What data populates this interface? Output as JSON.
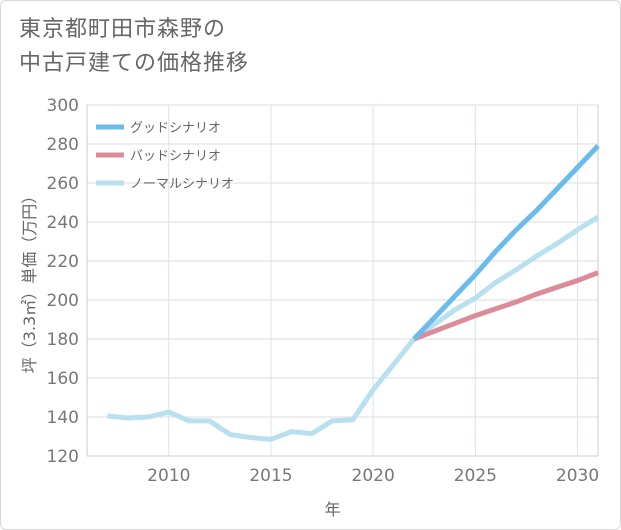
{
  "title_lines": [
    "東京都町田市森野の",
    "中古戸建ての価格推移"
  ],
  "chart_data": {
    "type": "line",
    "title": "東京都町田市森野の中古戸建ての価格推移",
    "xlabel": "年",
    "ylabel": "坪（3.3㎡）単価（万円）",
    "xlim": [
      2006,
      2031
    ],
    "ylim": [
      120,
      300
    ],
    "xticks": [
      2010,
      2015,
      2020,
      2025,
      2030
    ],
    "yticks": [
      120,
      140,
      160,
      180,
      200,
      220,
      240,
      260,
      280,
      300
    ],
    "legend_position": "top-left",
    "series": [
      {
        "name": "グッドシナリオ",
        "color": "#6bbcec",
        "x": [
          2022,
          2023,
          2024,
          2025,
          2026,
          2027,
          2028,
          2029,
          2030,
          2031
        ],
        "y": [
          180,
          191,
          202,
          213,
          225,
          236,
          246,
          257,
          268,
          279
        ]
      },
      {
        "name": "バッドシナリオ",
        "color": "#dc8c98",
        "x": [
          2022,
          2023,
          2024,
          2025,
          2026,
          2027,
          2028,
          2029,
          2030,
          2031
        ],
        "y": [
          180,
          184,
          188,
          192,
          195.5,
          199,
          203,
          206.5,
          210,
          214
        ]
      },
      {
        "name": "ノーマルシナリオ",
        "color": "#b9e0ef",
        "x": [
          2007,
          2008,
          2009,
          2010,
          2011,
          2012,
          2013,
          2014,
          2015,
          2016,
          2017,
          2018,
          2019,
          2020,
          2021,
          2022,
          2023,
          2024,
          2025,
          2026,
          2027,
          2028,
          2029,
          2030,
          2031
        ],
        "y": [
          140.5,
          139.5,
          140,
          142.5,
          138,
          138,
          131,
          129.5,
          128.5,
          132.5,
          131.5,
          138,
          138.5,
          154,
          167,
          180,
          187.5,
          195,
          201,
          209,
          215.5,
          222.5,
          229,
          236,
          242.5
        ]
      }
    ]
  }
}
